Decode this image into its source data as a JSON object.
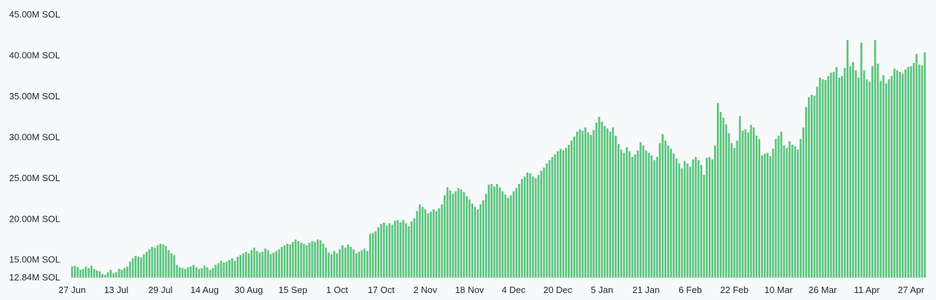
{
  "chart_data": {
    "type": "bar",
    "title": "",
    "xlabel": "",
    "ylabel": "",
    "ylim": [
      12.84,
      45.0
    ],
    "y_ticks": [
      {
        "value": 45.0,
        "label": "45.00M SOL"
      },
      {
        "value": 40.0,
        "label": "40.00M SOL"
      },
      {
        "value": 35.0,
        "label": "35.00M SOL"
      },
      {
        "value": 30.0,
        "label": "30.00M SOL"
      },
      {
        "value": 25.0,
        "label": "25.00M SOL"
      },
      {
        "value": 20.0,
        "label": "20.00M SOL"
      },
      {
        "value": 15.0,
        "label": "15.00M SOL"
      },
      {
        "value": 12.84,
        "label": "12.84M SOL"
      }
    ],
    "x_ticks": [
      {
        "index": 0,
        "label": "27 Jun"
      },
      {
        "index": 16,
        "label": "13 Jul"
      },
      {
        "index": 32,
        "label": "29 Jul"
      },
      {
        "index": 48,
        "label": "14 Aug"
      },
      {
        "index": 64,
        "label": "30 Aug"
      },
      {
        "index": 80,
        "label": "15 Sep"
      },
      {
        "index": 96,
        "label": "1 Oct"
      },
      {
        "index": 112,
        "label": "17 Oct"
      },
      {
        "index": 128,
        "label": "2 Nov"
      },
      {
        "index": 144,
        "label": "18 Nov"
      },
      {
        "index": 160,
        "label": "4 Dec"
      },
      {
        "index": 176,
        "label": "20 Dec"
      },
      {
        "index": 192,
        "label": "5 Jan"
      },
      {
        "index": 208,
        "label": "21 Jan"
      },
      {
        "index": 224,
        "label": "6 Feb"
      },
      {
        "index": 240,
        "label": "22 Feb"
      },
      {
        "index": 256,
        "label": "10 Mar"
      },
      {
        "index": 272,
        "label": "26 Mar"
      },
      {
        "index": 288,
        "label": "11 Apr"
      },
      {
        "index": 304,
        "label": "27 Apr"
      }
    ],
    "values": [
      14.2,
      14.3,
      14.1,
      13.8,
      13.9,
      14.2,
      14.0,
      14.3,
      13.9,
      13.7,
      13.6,
      13.3,
      13.2,
      13.5,
      13.8,
      13.4,
      13.5,
      13.9,
      13.8,
      14.0,
      14.2,
      14.8,
      15.2,
      15.5,
      15.4,
      15.3,
      15.7,
      16.0,
      16.3,
      16.6,
      16.5,
      16.8,
      17.0,
      16.9,
      16.7,
      16.2,
      15.8,
      15.6,
      14.4,
      14.1,
      14.0,
      13.9,
      14.1,
      14.2,
      14.4,
      14.1,
      13.9,
      14.0,
      14.3,
      14.1,
      13.8,
      14.0,
      14.4,
      14.6,
      14.9,
      14.7,
      14.8,
      15.0,
      15.2,
      14.9,
      15.4,
      15.6,
      15.8,
      16.0,
      15.8,
      16.2,
      16.5,
      16.1,
      15.9,
      16.0,
      16.4,
      16.2,
      15.7,
      15.9,
      16.1,
      16.3,
      16.6,
      16.8,
      17.0,
      16.9,
      17.2,
      17.5,
      17.3,
      17.1,
      17.0,
      16.8,
      17.1,
      17.3,
      17.2,
      17.5,
      17.4,
      17.0,
      16.5,
      15.9,
      15.7,
      16.1,
      15.8,
      16.3,
      16.8,
      16.5,
      16.9,
      16.6,
      16.3,
      15.8,
      16.0,
      16.2,
      16.4,
      16.1,
      18.2,
      18.3,
      18.5,
      19.0,
      19.4,
      19.6,
      19.2,
      19.5,
      19.3,
      19.8,
      19.9,
      19.6,
      19.9,
      19.5,
      19.1,
      19.7,
      20.1,
      21.0,
      21.8,
      21.5,
      21.2,
      20.7,
      20.9,
      21.2,
      21.0,
      21.3,
      21.8,
      22.9,
      23.9,
      23.5,
      23.1,
      23.4,
      23.8,
      23.6,
      23.3,
      22.8,
      22.4,
      21.9,
      21.5,
      21.2,
      21.8,
      22.3,
      23.1,
      24.2,
      24.3,
      24.0,
      24.3,
      23.9,
      23.4,
      23.0,
      22.6,
      22.9,
      23.4,
      23.8,
      24.3,
      24.9,
      25.2,
      25.7,
      25.6,
      25.2,
      25.0,
      25.4,
      25.9,
      26.3,
      26.8,
      27.2,
      27.6,
      27.9,
      28.3,
      28.6,
      28.4,
      28.7,
      29.1,
      29.6,
      30.1,
      30.7,
      31.0,
      30.8,
      31.2,
      30.6,
      30.3,
      30.9,
      31.8,
      32.5,
      31.9,
      31.4,
      31.1,
      30.7,
      31.2,
      30.2,
      29.2,
      28.5,
      28.1,
      28.8,
      28.3,
      27.6,
      27.9,
      28.4,
      29.4,
      29.0,
      28.4,
      28.1,
      27.8,
      27.2,
      27.6,
      29.3,
      30.4,
      29.6,
      29.0,
      28.6,
      28.0,
      27.4,
      26.8,
      26.2,
      27.1,
      26.8,
      26.4,
      27.3,
      27.6,
      27.2,
      26.6,
      25.4,
      27.5,
      27.6,
      27.3,
      29.0,
      34.2,
      33.1,
      32.4,
      31.6,
      30.5,
      29.3,
      28.7,
      29.6,
      32.6,
      30.8,
      31.0,
      30.6,
      31.5,
      31.2,
      30.2,
      29.8,
      27.8,
      28.0,
      28.1,
      27.7,
      28.6,
      29.8,
      30.2,
      30.7,
      29.0,
      28.7,
      29.5,
      29.1,
      28.9,
      28.5,
      29.8,
      31.2,
      33.7,
      34.9,
      35.2,
      35.1,
      36.2,
      37.3,
      37.1,
      37.0,
      37.5,
      37.9,
      38.0,
      38.6,
      37.3,
      37.5,
      38.5,
      41.9,
      38.7,
      39.2,
      38.2,
      37.3,
      41.6,
      38.2,
      37.1,
      36.8,
      38.7,
      41.9,
      39.0,
      36.9,
      37.6,
      36.6,
      37.1,
      37.5,
      38.4,
      38.2,
      38.0,
      37.8,
      38.3,
      38.6,
      38.7,
      39.1,
      40.2,
      38.9,
      38.8,
      40.4
    ]
  }
}
